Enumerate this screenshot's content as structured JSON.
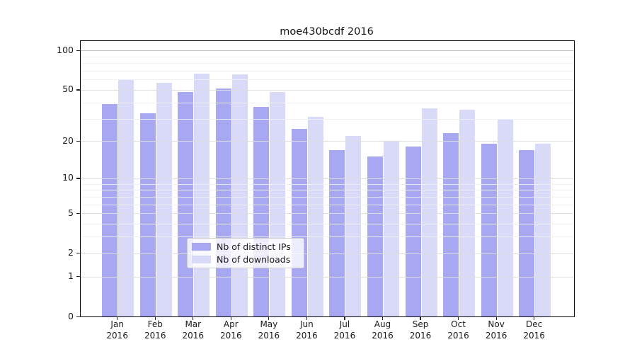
{
  "chart_data": {
    "type": "bar",
    "title": "moe430bcdf 2016",
    "months": [
      "Jan",
      "Feb",
      "Mar",
      "Apr",
      "May",
      "Jun",
      "Jul",
      "Aug",
      "Sep",
      "Oct",
      "Nov",
      "Dec"
    ],
    "year_label": "2016",
    "series": [
      {
        "name": "Nb of distinct IPs",
        "color": "#a7a7f2",
        "values": [
          39,
          33,
          48,
          51,
          37,
          25,
          17,
          15,
          18,
          23,
          19,
          17
        ]
      },
      {
        "name": "Nb of downloads",
        "color": "#d9d9f8",
        "values": [
          60,
          57,
          67,
          66,
          48,
          31,
          22,
          20,
          36,
          35,
          30,
          19
        ]
      }
    ],
    "yscale": "log1p",
    "ylim": [
      0,
      118
    ],
    "y_major_ticks": [
      0,
      1,
      2,
      5,
      10,
      20,
      50,
      100
    ],
    "y_minor_gridlines": [
      3,
      4,
      6,
      7,
      8,
      9,
      30,
      40,
      60,
      70,
      80,
      90
    ],
    "grid": "on",
    "legend_position": "inside lower-center",
    "colors": {
      "spine": "#000000",
      "grid_major": "#dddddd",
      "grid_minor": "#efefef",
      "grid_top": "#c3c3c3",
      "text": "#1a1a1a",
      "background": "#ffffff"
    }
  }
}
